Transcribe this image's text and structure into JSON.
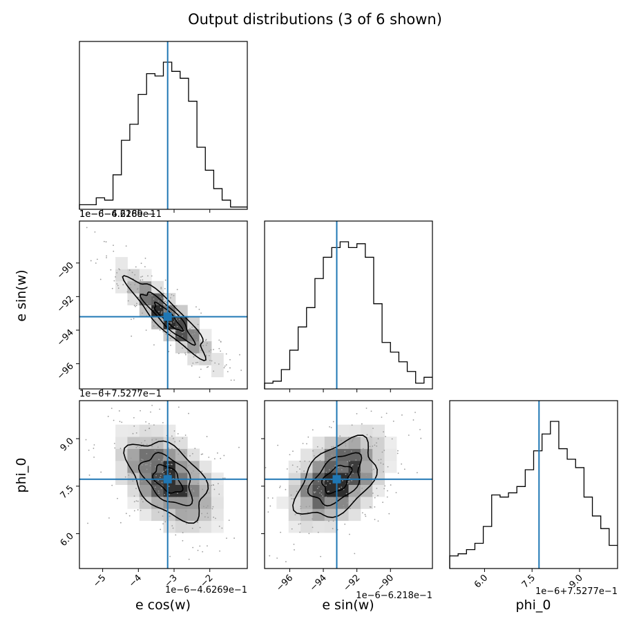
{
  "title": "Output distributions (3 of 6 shown)",
  "colors": {
    "truth": "#1f77b4",
    "hist": "#000000",
    "contour": "#000000"
  },
  "chart_data": {
    "type": "corner",
    "params": [
      {
        "name": "e cos(w)",
        "label": "e cos(w)",
        "offset": "1e−6−4.6269e−1",
        "range": [
          -5.65,
          -0.95
        ],
        "ticks": [
          -5,
          -4,
          -3,
          -2
        ],
        "tick_labels": [
          "−5",
          "−4",
          "−3",
          "−2"
        ],
        "truth": -3.18
      },
      {
        "name": "e sin(w)",
        "label": "e sin(w)",
        "offset": "1e−6−6.218e−1",
        "range": [
          -97.5,
          -87.5
        ],
        "ticks": [
          -96,
          -94,
          -92,
          -90
        ],
        "tick_labels": [
          "−96",
          "−94",
          "−92",
          "−90"
        ],
        "truth": -93.2
      },
      {
        "name": "phi_0",
        "label": "phi_0",
        "offset": "1e−6+7.5277e−1",
        "range": [
          4.9,
          10.2
        ],
        "ticks": [
          6.0,
          7.5,
          9.0
        ],
        "tick_labels": [
          "6.0",
          "7.5",
          "9.0"
        ],
        "truth": 7.72
      }
    ],
    "histograms": [
      {
        "param": "e cos(w)",
        "bins": 20,
        "counts": [
          2,
          2,
          5,
          4,
          15,
          30,
          37,
          50,
          59,
          58,
          64,
          60,
          57,
          47,
          27,
          17,
          9,
          4,
          1,
          1
        ]
      },
      {
        "param": "e sin(w)",
        "bins": 20,
        "counts": [
          3,
          4,
          10,
          20,
          32,
          42,
          57,
          68,
          73,
          76,
          73,
          75,
          68,
          44,
          24,
          19,
          14,
          9,
          3,
          6
        ]
      },
      {
        "param": "phi_0",
        "bins": 20,
        "counts": [
          6,
          7,
          9,
          12,
          20,
          35,
          34,
          36,
          39,
          47,
          56,
          64,
          70,
          57,
          52,
          48,
          34,
          25,
          19,
          11
        ]
      }
    ],
    "scatter": [
      {
        "x": "e cos(w)",
        "y": "e sin(w)",
        "correlation": -0.9,
        "points": 260
      },
      {
        "x": "e cos(w)",
        "y": "phi_0",
        "correlation": -0.45,
        "points": 260
      },
      {
        "x": "e sin(w)",
        "y": "phi_0",
        "correlation": 0.45,
        "points": 260
      }
    ]
  }
}
